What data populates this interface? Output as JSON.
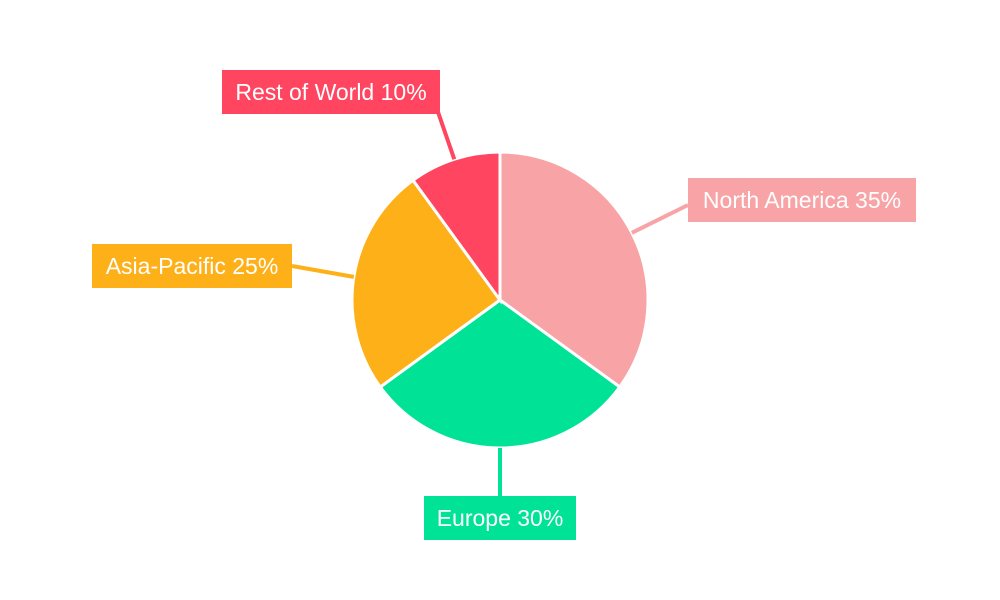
{
  "chart_data": {
    "type": "pie",
    "title": "",
    "start_angle": "top, clockwise",
    "slices": [
      {
        "label": "North America",
        "value": 35,
        "display": "North America 35%",
        "color": "#F8A4A6"
      },
      {
        "label": "Europe",
        "value": 30,
        "display": "Europe 30%",
        "color": "#00E396"
      },
      {
        "label": "Asia-Pacific",
        "value": 25,
        "display": "Asia-Pacific 25%",
        "color": "#FEB019"
      },
      {
        "label": "Rest of World",
        "value": 10,
        "display": "Rest of World 10%",
        "color": "#FF4560"
      }
    ]
  }
}
